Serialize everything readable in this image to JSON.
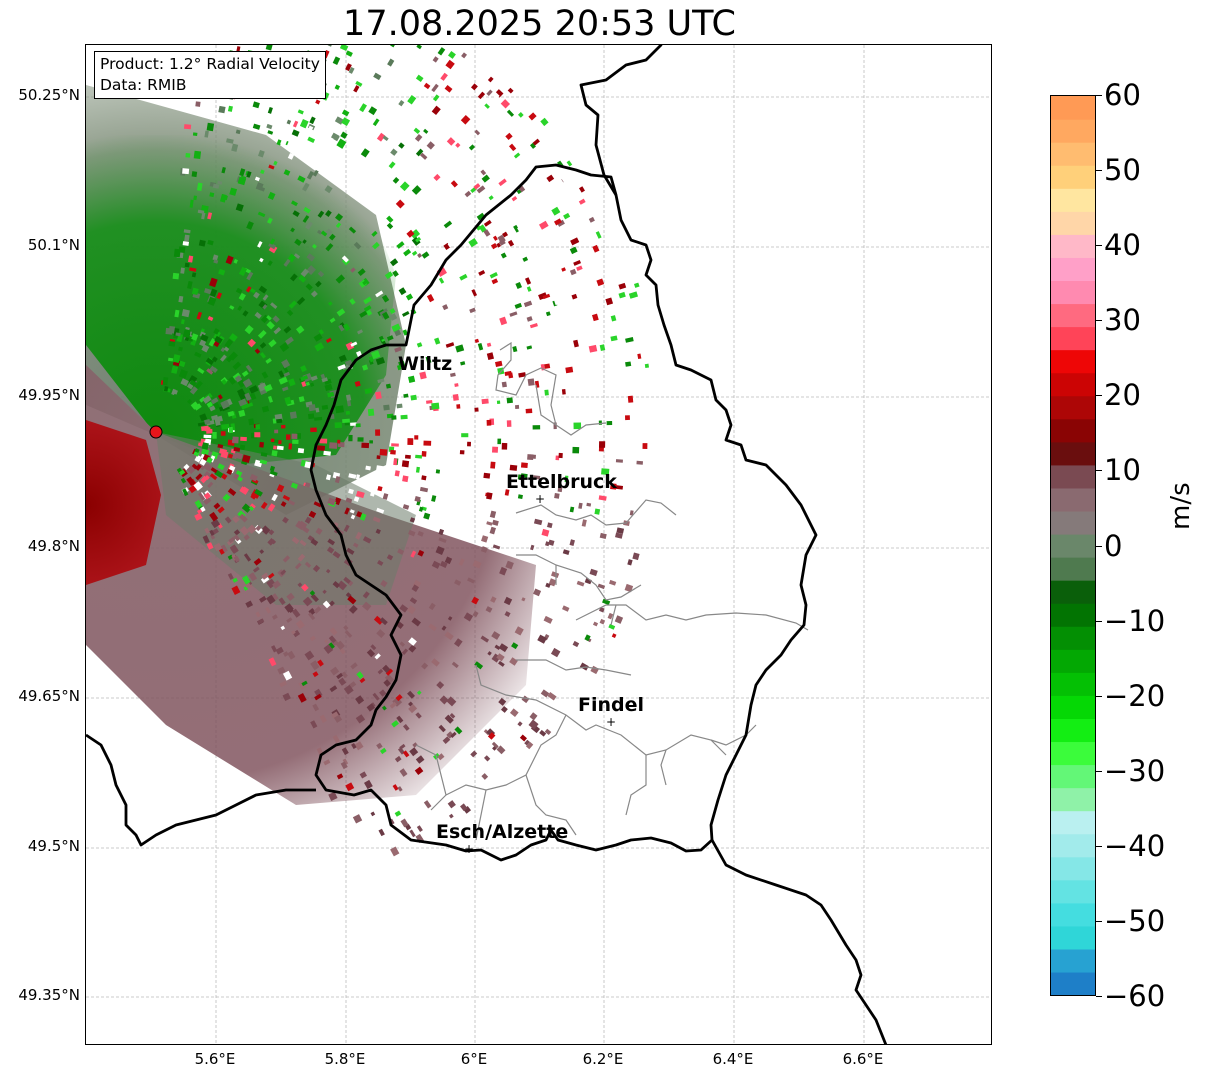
{
  "title": "17.08.2025 20:53 UTC",
  "info": {
    "product": "Product: 1.2° Radial Velocity",
    "source": "Data: RMIB"
  },
  "axes": {
    "lat_ticks": [
      "50.25°N",
      "50.1°N",
      "49.95°N",
      "49.8°N",
      "49.65°N",
      "49.5°N",
      "49.35°N"
    ],
    "lon_ticks": [
      "5.6°E",
      "5.8°E",
      "6°E",
      "6.2°E",
      "6.4°E",
      "6.6°E"
    ],
    "gridlines": true
  },
  "cities": [
    {
      "name": "Wiltz"
    },
    {
      "name": "Ettelbruck"
    },
    {
      "name": "Findel"
    },
    {
      "name": "Esch/Alzette"
    }
  ],
  "radar_site_color": "#e8151b",
  "colorbar": {
    "unit": "m/s",
    "ticks": [
      "60",
      "50",
      "40",
      "30",
      "20",
      "10",
      "0",
      "−10",
      "−20",
      "−30",
      "−40",
      "−50",
      "−60"
    ],
    "range": [
      -60,
      60
    ],
    "colors": [
      "#1e7fc8",
      "#27a2d2",
      "#2fd6d8",
      "#44dde0",
      "#63e3e3",
      "#85e7e7",
      "#a2ebeb",
      "#baf0f0",
      "#8ff2a8",
      "#63f777",
      "#3bfc3b",
      "#13ee13",
      "#05d805",
      "#04c004",
      "#03a803",
      "#038f03",
      "#027402",
      "#0a5f0a",
      "#4f7a4f",
      "#6a876a",
      "#857a7a",
      "#8a6a70",
      "#7a4a52",
      "#6a0e0e",
      "#8a0404",
      "#ad0606",
      "#cc0404",
      "#ee0606",
      "#ff4458",
      "#ff6a80",
      "#ff8ab0",
      "#ffa0c8",
      "#ffb8c8",
      "#ffd6a8",
      "#ffe6a0",
      "#ffd07a",
      "#ffbc70",
      "#ffa860",
      "#ff9a55"
    ]
  }
}
